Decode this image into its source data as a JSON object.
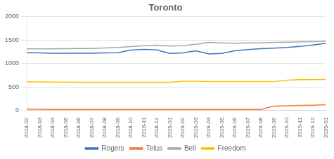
{
  "chart_data": {
    "type": "line",
    "title": "Toronto",
    "categories": [
      "2018-02",
      "2018-03",
      "2018-04",
      "2018-05",
      "2018-06",
      "2018-07",
      "2018-08",
      "2018-09",
      "2018-10",
      "2018-11",
      "2018-12",
      "2019-01",
      "2019-02",
      "2019-03",
      "2019-04",
      "2019-05",
      "2019-06",
      "2019-07",
      "2019-08",
      "2019-09",
      "2019-10",
      "2019-11",
      "2019-12",
      "2020-01"
    ],
    "series": [
      {
        "name": "Rogers",
        "color": "#4472C4",
        "values": [
          1230,
          1225,
          1220,
          1218,
          1218,
          1220,
          1225,
          1228,
          1285,
          1300,
          1290,
          1215,
          1225,
          1270,
          1205,
          1215,
          1270,
          1295,
          1315,
          1325,
          1340,
          1365,
          1395,
          1430
        ]
      },
      {
        "name": "Telus",
        "color": "#ED7D31",
        "values": [
          30,
          25,
          20,
          20,
          20,
          22,
          22,
          22,
          22,
          22,
          22,
          22,
          22,
          22,
          22,
          22,
          22,
          22,
          22,
          90,
          100,
          105,
          110,
          120
        ]
      },
      {
        "name": "Bell",
        "color": "#A6A6A6",
        "values": [
          1310,
          1310,
          1310,
          1315,
          1318,
          1320,
          1330,
          1340,
          1360,
          1380,
          1390,
          1370,
          1380,
          1410,
          1450,
          1440,
          1430,
          1440,
          1440,
          1450,
          1455,
          1460,
          1465,
          1470
        ]
      },
      {
        "name": "Freedom",
        "color": "#FFC000",
        "values": [
          610,
          605,
          603,
          601,
          600,
          600,
          600,
          600,
          600,
          600,
          600,
          600,
          620,
          620,
          615,
          615,
          615,
          615,
          615,
          615,
          645,
          655,
          655,
          660
        ]
      }
    ],
    "ylim": [
      0,
      2000
    ],
    "yticks": [
      0,
      500,
      1000,
      1500,
      2000
    ],
    "grid": true,
    "legend": "bottom"
  }
}
